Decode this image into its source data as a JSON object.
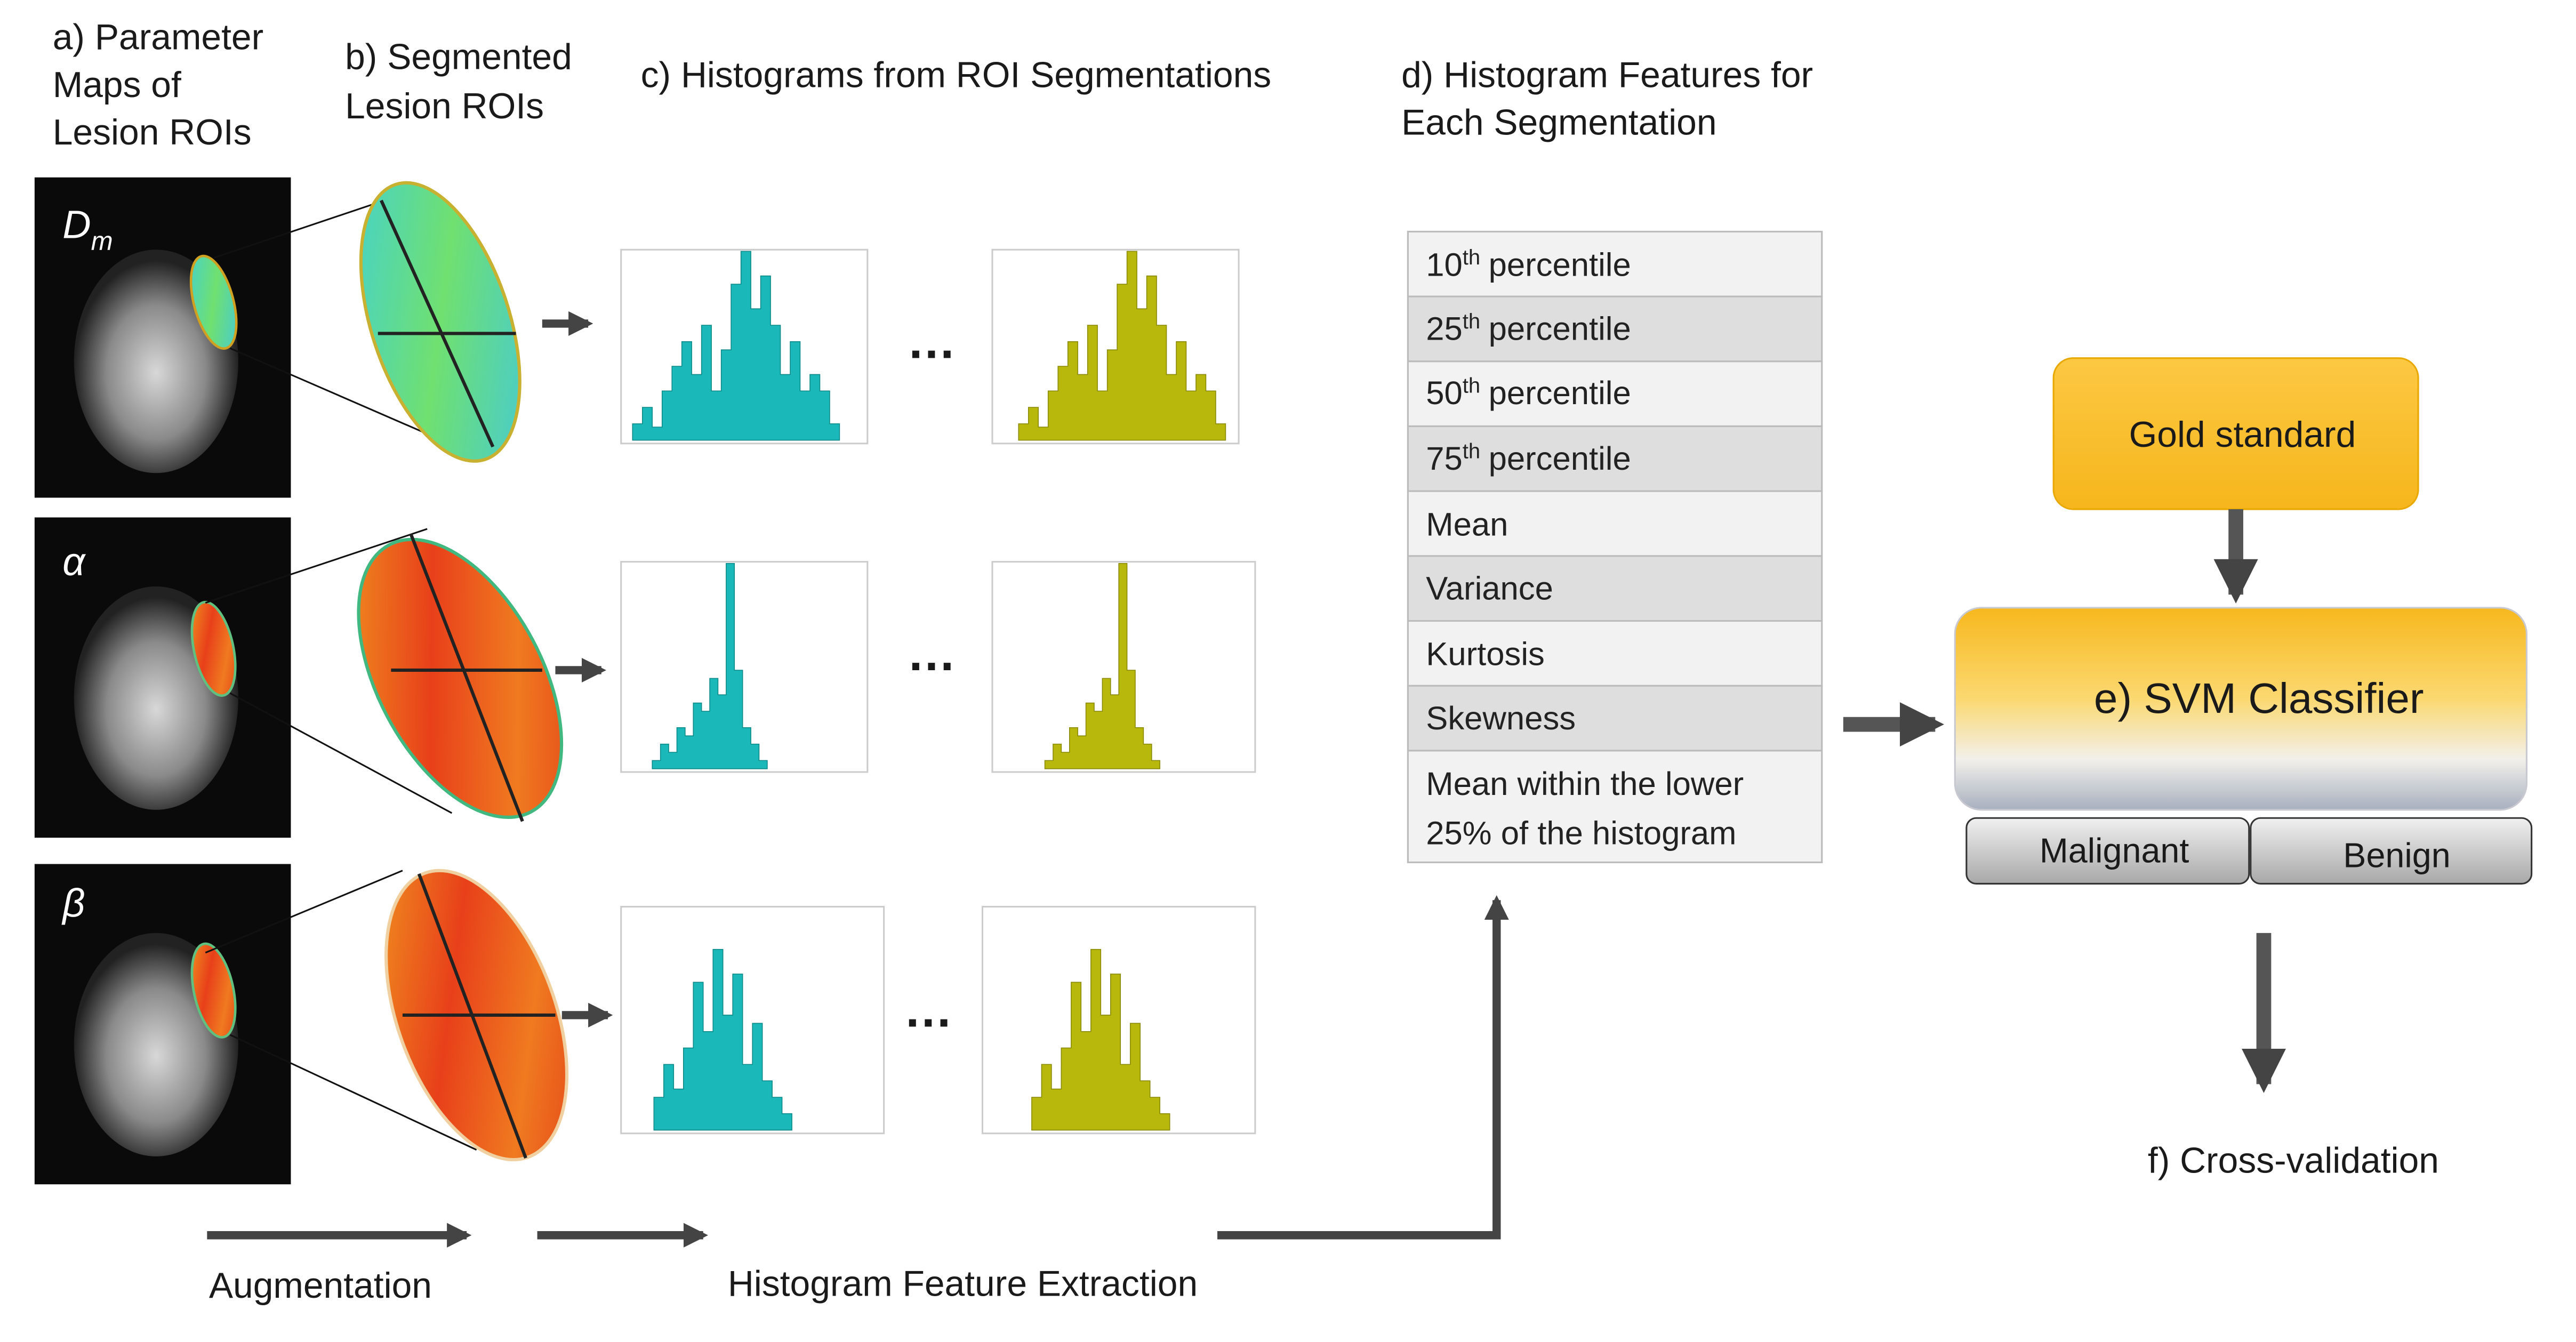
{
  "headers": {
    "a": [
      "a) Parameter",
      "Maps of",
      "Lesion ROIs"
    ],
    "b": [
      "b) Segmented",
      "Lesion ROIs"
    ],
    "c": "c) Histograms from ROI Segmentations",
    "d": [
      "d) Histogram Features for",
      "Each Segmentation"
    ]
  },
  "rows": [
    {
      "main": "D",
      "sub": "m"
    },
    {
      "main": "α"
    },
    {
      "main": "β"
    }
  ],
  "ellipsis": "…",
  "features": [
    {
      "base": "10",
      "sup": "th",
      "rest": "percentile"
    },
    {
      "base": "25",
      "sup": "th",
      "rest": "percentile"
    },
    {
      "base": "50",
      "sup": "th",
      "rest": "percentile"
    },
    {
      "base": "75",
      "sup": "th",
      "rest": "percentile"
    },
    {
      "text": "Mean"
    },
    {
      "text": "Variance"
    },
    {
      "text": "Kurtosis"
    },
    {
      "text": "Skewness"
    },
    {
      "lines": [
        "Mean within the lower",
        "25% of the histogram"
      ]
    }
  ],
  "gold_standard": "Gold standard",
  "classifier": "e) SVM Classifier",
  "classes": [
    "Malignant",
    "Benign"
  ],
  "cross_validation": "f) Cross-validation",
  "augmentation": "Augmentation",
  "extraction": "Histogram Feature Extraction"
}
